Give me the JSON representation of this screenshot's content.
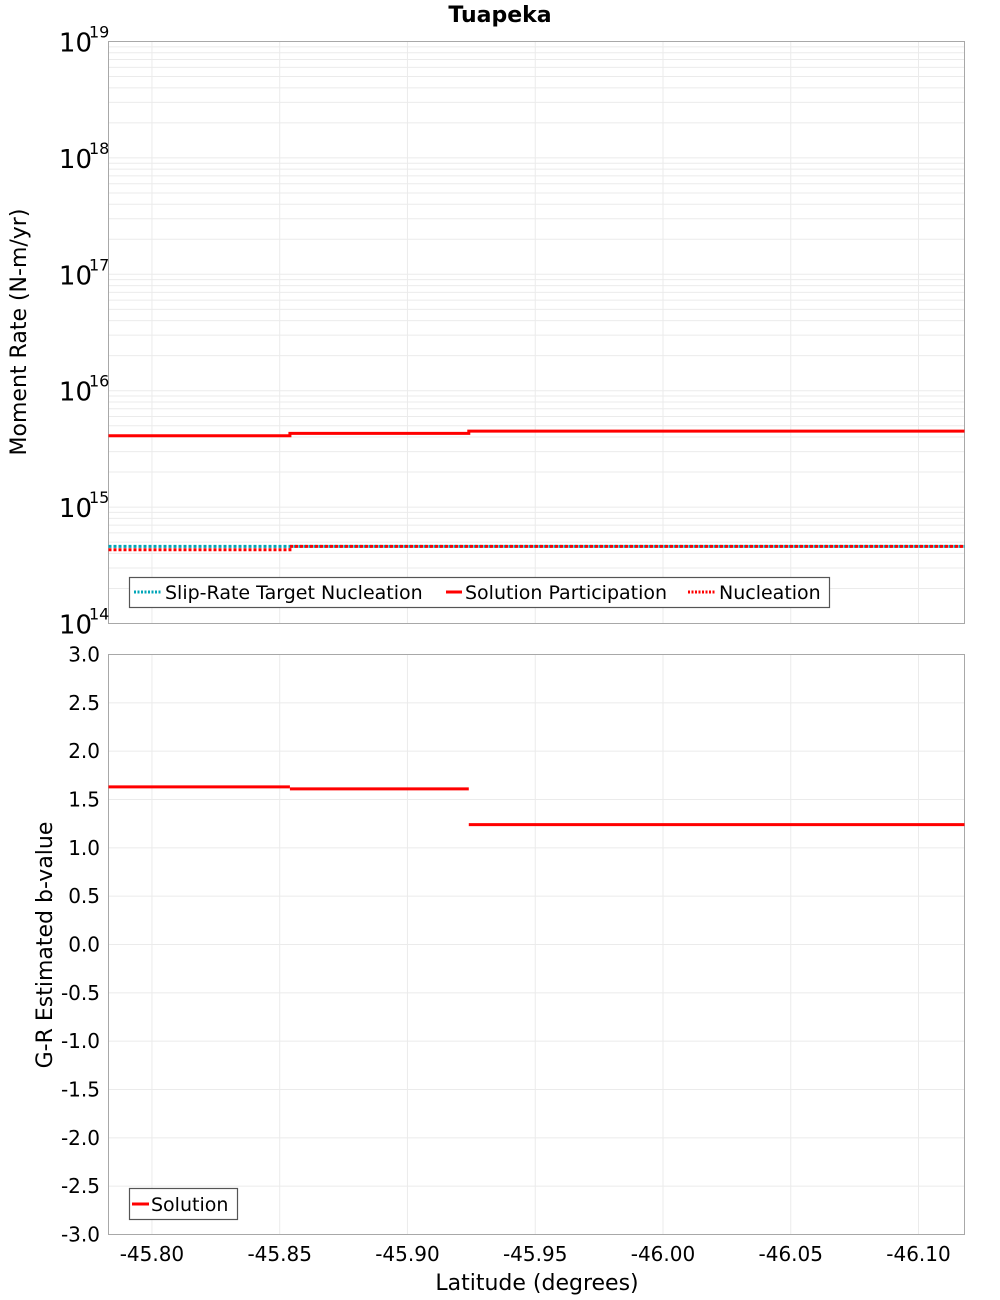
{
  "title": "Tuapeka",
  "chart_data": [
    {
      "type": "line",
      "subtype": "step",
      "title": "Tuapeka",
      "xlabel": "Latitude (degrees)",
      "ylabel": "Moment Rate (N-m/yr)",
      "yscale": "log",
      "ylim": [
        100000000000000.0,
        1e+19
      ],
      "xlim": [
        -45.783,
        -46.118
      ],
      "x_reversed": true,
      "grid": true,
      "yticks": [
        {
          "base": "10",
          "exp": "19",
          "value": 1e+19
        },
        {
          "base": "10",
          "exp": "18",
          "value": 1e+18
        },
        {
          "base": "10",
          "exp": "17",
          "value": 1e+17
        },
        {
          "base": "10",
          "exp": "16",
          "value": 1e+16
        },
        {
          "base": "10",
          "exp": "15",
          "value": 1000000000000000.0
        },
        {
          "base": "10",
          "exp": "14",
          "value": 100000000000000.0
        }
      ],
      "segment_edges": [
        -45.783,
        -45.854,
        -45.924,
        -46.118
      ],
      "series": [
        {
          "name": "Slip-Rate Target Nucleation",
          "color": "#00a6b8",
          "style": "dotted",
          "values": [
            460000000000000.0,
            460000000000000.0,
            460000000000000.0
          ]
        },
        {
          "name": "Solution Participation",
          "color": "#ff0000",
          "style": "solid",
          "values": [
            4100000000000000.0,
            4300000000000000.0,
            4500000000000000.0
          ]
        },
        {
          "name": "Nucleation",
          "color": "#ff0000",
          "style": "dotted",
          "values": [
            430000000000000.0,
            460000000000000.0,
            460000000000000.0
          ]
        }
      ],
      "legend": {
        "position": "lower-left",
        "entries": [
          "Slip-Rate Target Nucleation",
          "Solution Participation",
          "Nucleation"
        ]
      }
    },
    {
      "type": "line",
      "subtype": "step",
      "xlabel": "Latitude (degrees)",
      "ylabel": "G-R Estimated b-value",
      "ylim": [
        -3.0,
        3.0
      ],
      "xlim": [
        -45.783,
        -46.118
      ],
      "x_reversed": true,
      "grid": true,
      "yticks": [
        "3.0",
        "2.5",
        "2.0",
        "1.5",
        "1.0",
        "0.5",
        "0.0",
        "-0.5",
        "-1.0",
        "-1.5",
        "-2.0",
        "-2.5",
        "-3.0"
      ],
      "xticks": [
        "-45.80",
        "-45.85",
        "-45.90",
        "-45.95",
        "-46.00",
        "-46.05",
        "-46.10"
      ],
      "segment_edges": [
        -45.783,
        -45.854,
        -45.924,
        -46.118
      ],
      "series": [
        {
          "name": "Solution",
          "color": "#ff0000",
          "style": "solid",
          "values": [
            1.63,
            1.61,
            1.24
          ]
        }
      ],
      "legend": {
        "position": "lower-left",
        "entries": [
          "Solution"
        ]
      }
    }
  ],
  "top": {
    "ylabel": "Moment Rate (N-m/yr)",
    "legend": {
      "slip_rate": "Slip-Rate Target Nucleation",
      "participation": "Solution Participation",
      "nucleation": "Nucleation"
    }
  },
  "bottom": {
    "ylabel": "G-R Estimated b-value",
    "xlabel": "Latitude (degrees)",
    "legend": {
      "solution": "Solution"
    }
  },
  "colors": {
    "red": "#ff0000",
    "cyan": "#00a6b8",
    "grid": "#ebebeb",
    "frame": "#a8a8a8",
    "legend_border": "#555555"
  }
}
